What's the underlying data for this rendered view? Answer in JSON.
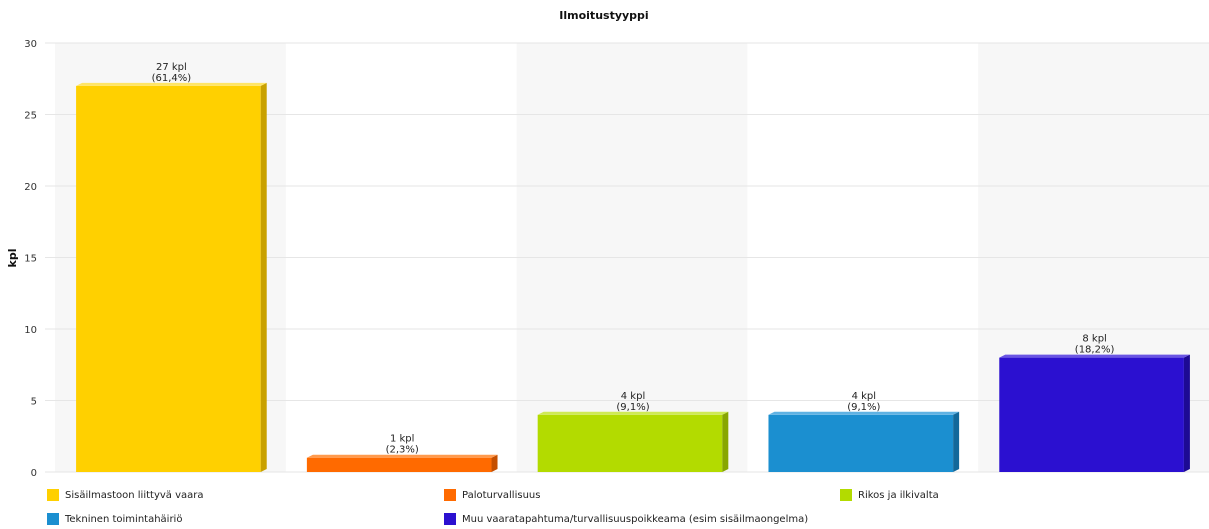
{
  "chart_data": {
    "type": "bar",
    "title": "Ilmoitustyyppi",
    "ylabel": "kpl",
    "xlabel": "",
    "ylim": [
      0,
      30
    ],
    "yticks": [
      0,
      5,
      10,
      15,
      20,
      25,
      30
    ],
    "grid": true,
    "legend_position": "bottom",
    "categories": [
      "Sisäilmastoon liittyvä vaara",
      "Paloturvallisuus",
      "Rikos ja ilkivalta",
      "Tekninen toimintahäiriö",
      "Muu vaaratapahtuma/turvallisuuspoikkeama (esim sisäilmaongelma)"
    ],
    "values": [
      27,
      1,
      4,
      4,
      8
    ],
    "data_labels": [
      [
        "27 kpl",
        "(61,4%)"
      ],
      [
        "1 kpl",
        "(2,3%)"
      ],
      [
        "4 kpl",
        "(9,1%)"
      ],
      [
        "4 kpl",
        "(9,1%)"
      ],
      [
        "8 kpl",
        "(18,2%)"
      ]
    ],
    "colors": [
      "#FFD000",
      "#FF6A00",
      "#B3DB00",
      "#1B8FD0",
      "#2B10D0"
    ],
    "side_colors": [
      "#C9A100",
      "#C44F00",
      "#88A600",
      "#12689A",
      "#1D0A94"
    ],
    "top_colors": [
      "#FFE566",
      "#FF9A4D",
      "#CFEA55",
      "#5FB2E3",
      "#6A55E3"
    ]
  }
}
